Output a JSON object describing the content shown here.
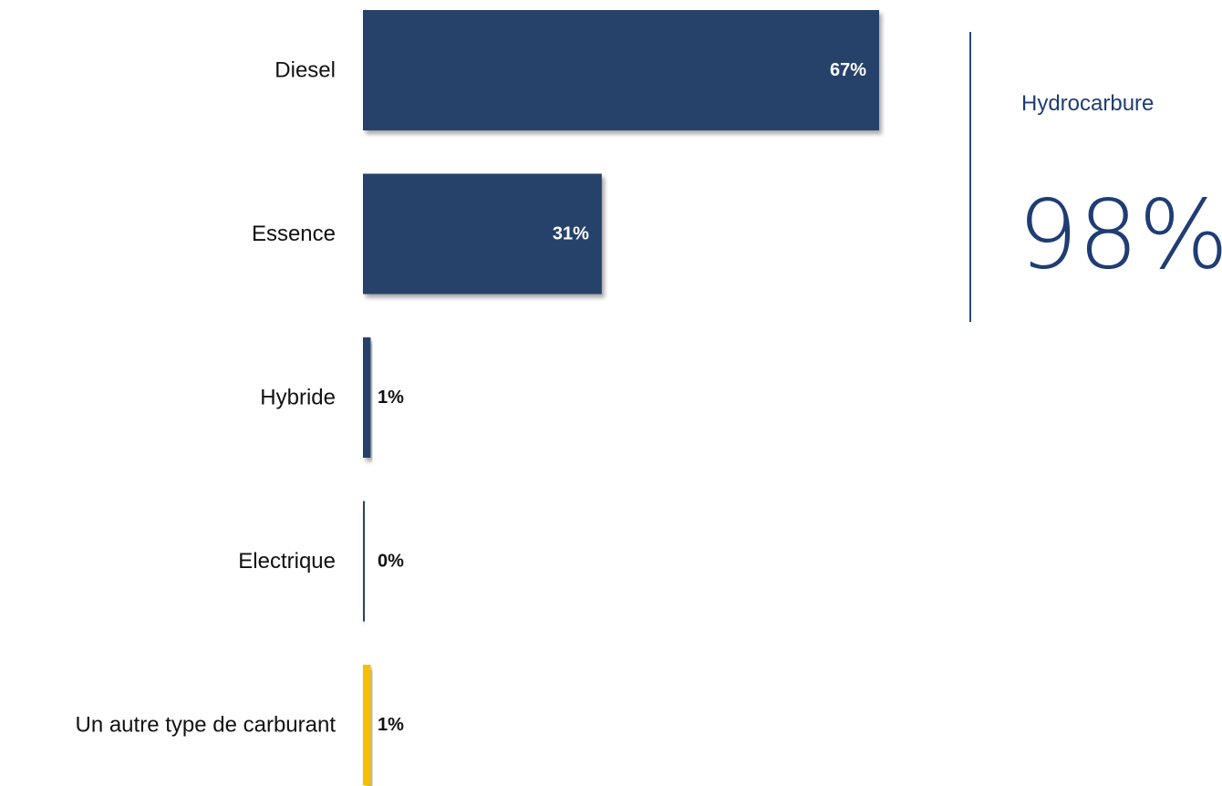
{
  "chart_data": {
    "type": "bar",
    "orientation": "horizontal",
    "categories": [
      "Diesel",
      "Essence",
      "Hybride",
      "Electrique",
      "Un autre type de carburant"
    ],
    "values": [
      67,
      31,
      1,
      0,
      1
    ],
    "value_labels": [
      "67%",
      "31%",
      "1%",
      "0%",
      "1%"
    ],
    "bar_colors": [
      "#27426a",
      "#27426a",
      "#27426a",
      "#27426a",
      "#f5bf00"
    ],
    "xlim": [
      0,
      67
    ],
    "grid": false,
    "legend": "none"
  },
  "kpi": {
    "title": "Hydrocarbure",
    "value": "98%",
    "color": "#1f3d73"
  }
}
